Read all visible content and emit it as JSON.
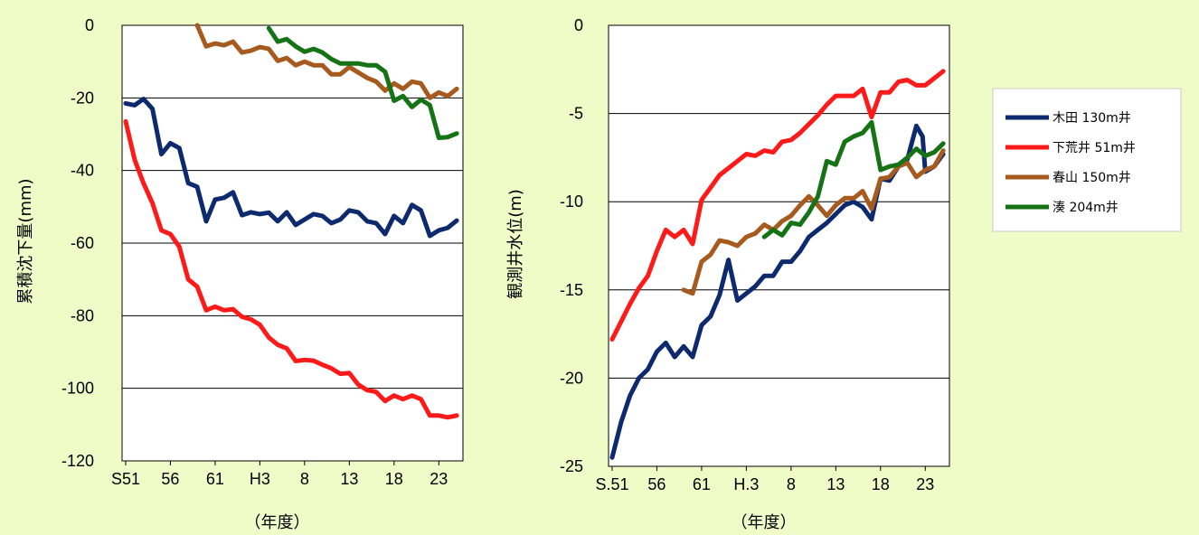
{
  "chart_data": [
    {
      "type": "line",
      "title": "",
      "xlabel": "（年度）",
      "ylabel": "累積沈下量(mm)",
      "ylim": [
        -120,
        0
      ],
      "yticks": [
        0,
        -20,
        -40,
        -60,
        -80,
        -100,
        -120
      ],
      "ytick_labels": [
        "0",
        "-20",
        "-40",
        "-60",
        "-80",
        "-100",
        "-120"
      ],
      "grid": "horizontal",
      "x_range": [
        1975.6,
        2013.7
      ],
      "xticks": [
        {
          "year": 1976,
          "label": "S51"
        },
        {
          "year": 1981,
          "label": "56"
        },
        {
          "year": 1986,
          "label": "61"
        },
        {
          "year": 1991,
          "label": "H3"
        },
        {
          "year": 1996,
          "label": "8"
        },
        {
          "year": 2001,
          "label": "13"
        },
        {
          "year": 2006,
          "label": "18"
        },
        {
          "year": 2011,
          "label": "23"
        }
      ],
      "series": [
        {
          "name": "木田 130m井",
          "color": "#0d2a6e",
          "x": [
            1976,
            1977,
            1978,
            1979,
            1980,
            1981,
            1982,
            1983,
            1984,
            1985,
            1986,
            1987,
            1988,
            1989,
            1990,
            1991,
            1992,
            1993,
            1994,
            1995,
            1996,
            1997,
            1998,
            1999,
            2000,
            2001,
            2002,
            2003,
            2004,
            2005,
            2006,
            2007,
            2008,
            2009,
            2010,
            2011,
            2012,
            2013
          ],
          "y": [
            -21.5,
            -22,
            -20.3,
            -23,
            -35.5,
            -32.5,
            -33.8,
            -43.5,
            -44.5,
            -54,
            -48,
            -47.5,
            -46,
            -52.3,
            -51.5,
            -52,
            -51.6,
            -54,
            -51.5,
            -55,
            -53.5,
            -52,
            -52.5,
            -54.5,
            -53.5,
            -51,
            -51.5,
            -54,
            -54.5,
            -57.5,
            -52.5,
            -54.5,
            -49.5,
            -51,
            -58,
            -56.5,
            -55.8,
            -53.8
          ]
        },
        {
          "name": "下荒井 51m井",
          "color": "#ff1a1a",
          "x": [
            1976,
            1977,
            1978,
            1979,
            1980,
            1981,
            1982,
            1983,
            1984,
            1985,
            1986,
            1987,
            1988,
            1989,
            1990,
            1991,
            1992,
            1993,
            1994,
            1995,
            1996,
            1997,
            1998,
            1999,
            2000,
            2001,
            2002,
            2003,
            2004,
            2005,
            2006,
            2007,
            2008,
            2009,
            2010,
            2011,
            2012,
            2013
          ],
          "y": [
            -26.5,
            -37,
            -43.5,
            -49,
            -56.5,
            -57.5,
            -61,
            -70,
            -72,
            -78.5,
            -77.5,
            -78.5,
            -78.2,
            -80.3,
            -81,
            -82.5,
            -86,
            -88,
            -89,
            -92.5,
            -92.2,
            -92.4,
            -93.5,
            -94.5,
            -96,
            -95.8,
            -99,
            -100.5,
            -101,
            -103.5,
            -102,
            -103,
            -102,
            -103,
            -107.5,
            -107.5,
            -108,
            -107.5
          ]
        },
        {
          "name": "春山 150m井",
          "color": "#a65a1e",
          "x": [
            1984,
            1985,
            1986,
            1987,
            1988,
            1989,
            1990,
            1991,
            1992,
            1993,
            1994,
            1995,
            1996,
            1997,
            1998,
            1999,
            2000,
            2001,
            2002,
            2003,
            2004,
            2005,
            2006,
            2007,
            2008,
            2009,
            2010,
            2011,
            2012,
            2013
          ],
          "y": [
            0,
            -5.8,
            -5,
            -5.5,
            -4.5,
            -7.5,
            -7,
            -6,
            -6.5,
            -9.8,
            -9,
            -11,
            -10,
            -11,
            -11,
            -13.5,
            -13.5,
            -11.5,
            -13,
            -14.5,
            -15.5,
            -18,
            -16,
            -17.5,
            -15.5,
            -16,
            -20,
            -18.5,
            -19.5,
            -17.5
          ]
        },
        {
          "name": "湊 204m井",
          "color": "#157315",
          "x": [
            1992,
            1993,
            1994,
            1995,
            1996,
            1997,
            1998,
            1999,
            2000,
            2001,
            2002,
            2003,
            2004,
            2005,
            2006,
            2007,
            2008,
            2009,
            2010,
            2011,
            2012,
            2013
          ],
          "y": [
            -0.8,
            -4.5,
            -3.8,
            -5.8,
            -7.3,
            -6.5,
            -7.5,
            -9.3,
            -10.5,
            -10.5,
            -10.5,
            -11,
            -11,
            -12.8,
            -20.8,
            -19.5,
            -22.5,
            -20.5,
            -22,
            -31,
            -30.8,
            -29.8
          ]
        }
      ]
    },
    {
      "type": "line",
      "title": "",
      "xlabel": "（年度）",
      "ylabel": "観測井水位(m)",
      "ylim": [
        -25,
        0
      ],
      "yticks": [
        0,
        -5,
        -10,
        -15,
        -20,
        -25
      ],
      "ytick_labels": [
        "0",
        "-5",
        "-10",
        "-15",
        "-20",
        "-25"
      ],
      "grid": "horizontal",
      "legend": "right",
      "x_range": [
        1975.6,
        2013.7
      ],
      "xticks": [
        {
          "year": 1976,
          "label": "S.51"
        },
        {
          "year": 1981,
          "label": "56"
        },
        {
          "year": 1986,
          "label": "61"
        },
        {
          "year": 1991,
          "label": "H.3"
        },
        {
          "year": 1996,
          "label": "8"
        },
        {
          "year": 2001,
          "label": "13"
        },
        {
          "year": 2006,
          "label": "18"
        },
        {
          "year": 2011,
          "label": "23"
        }
      ],
      "series": [
        {
          "name": "木田 130m井",
          "color": "#0d2a6e",
          "x": [
            1976,
            1977,
            1978,
            1979,
            1980,
            1981,
            1982,
            1983,
            1984,
            1985,
            1986,
            1987,
            1988,
            1989,
            1990,
            1991,
            1992,
            1993,
            1994,
            1995,
            1996,
            1997,
            1998,
            1999,
            2000,
            2001,
            2002,
            2003,
            2004,
            2005,
            2006,
            2007,
            2008,
            2009,
            2010,
            2010.7,
            2011,
            2012,
            2013
          ],
          "y": [
            -24.5,
            -22.5,
            -21,
            -20,
            -19.5,
            -18.5,
            -18,
            -18.8,
            -18.2,
            -18.8,
            -17,
            -16.5,
            -15.3,
            -13.3,
            -15.6,
            -15.2,
            -14.8,
            -14.2,
            -14.2,
            -13.4,
            -13.4,
            -12.8,
            -12,
            -11.6,
            -11.2,
            -10.7,
            -10.2,
            -10,
            -10.3,
            -11,
            -8.7,
            -8.8,
            -8,
            -7.6,
            -5.7,
            -6.3,
            -8.3,
            -8,
            -7.3
          ]
        },
        {
          "name": "下荒井 51m井",
          "color": "#ff1a1a",
          "x": [
            1976,
            1977,
            1978,
            1979,
            1980,
            1981,
            1982,
            1983,
            1984,
            1985,
            1986,
            1987,
            1988,
            1989,
            1990,
            1991,
            1992,
            1993,
            1994,
            1995,
            1996,
            1997,
            1998,
            1999,
            2000,
            2001,
            2002,
            2003,
            2004,
            2005,
            2006,
            2007,
            2008,
            2009,
            2010,
            2011,
            2012,
            2013
          ],
          "y": [
            -17.8,
            -16.8,
            -15.8,
            -14.9,
            -14.2,
            -12.8,
            -11.6,
            -12,
            -11.6,
            -12.4,
            -9.9,
            -9.2,
            -8.5,
            -8.1,
            -7.7,
            -7.3,
            -7.4,
            -7.1,
            -7.2,
            -6.6,
            -6.5,
            -6.1,
            -5.6,
            -5.1,
            -4.5,
            -4,
            -4,
            -4,
            -3.6,
            -5.2,
            -3.8,
            -3.8,
            -3.2,
            -3.1,
            -3.4,
            -3.4,
            -3,
            -2.6
          ]
        },
        {
          "name": "春山 150m井",
          "color": "#a65a1e",
          "x": [
            1984,
            1985,
            1986,
            1987,
            1988,
            1989,
            1990,
            1991,
            1992,
            1993,
            1994,
            1995,
            1996,
            1997,
            1998,
            1999,
            2000,
            2001,
            2002,
            2003,
            2004,
            2005,
            2006,
            2007,
            2008,
            2009,
            2010,
            2011,
            2012,
            2013
          ],
          "y": [
            -15,
            -15.2,
            -13.4,
            -13,
            -12.2,
            -12.3,
            -12.5,
            -12,
            -11.8,
            -11.3,
            -11.6,
            -11.1,
            -10.8,
            -10.2,
            -9.7,
            -10.2,
            -10.8,
            -10.2,
            -9.8,
            -9.8,
            -9.4,
            -10.4,
            -8.7,
            -8.6,
            -8,
            -7.8,
            -8.6,
            -8.2,
            -8,
            -7.1
          ]
        },
        {
          "name": "湊 204m井",
          "color": "#157315",
          "x": [
            1993,
            1994,
            1995,
            1996,
            1997,
            1998,
            1999,
            2000,
            2001,
            2002,
            2003,
            2004,
            2005,
            2006,
            2007,
            2008,
            2009,
            2010,
            2011,
            2012,
            2013
          ],
          "y": [
            -12,
            -11.6,
            -11.9,
            -11.2,
            -11.3,
            -10.6,
            -9.7,
            -7.7,
            -7.9,
            -6.6,
            -6.3,
            -6.1,
            -5.5,
            -8.2,
            -8,
            -7.9,
            -7.5,
            -7,
            -7.4,
            -7.2,
            -6.7
          ]
        }
      ]
    }
  ]
}
